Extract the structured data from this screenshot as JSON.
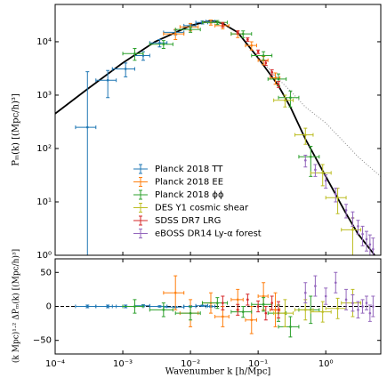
{
  "chart_data": [
    {
      "type": "errorbar",
      "log_x": true,
      "log_y": true,
      "ylabel": "Pₘ(k)  [(Mpc/h)³]",
      "xlim": [
        0.0001,
        6.5
      ],
      "ylim": [
        1,
        50000
      ],
      "xticks": [
        {
          "value": 0.0001,
          "label": "10⁻⁴"
        },
        {
          "value": 0.001,
          "label": "10⁻³"
        },
        {
          "value": 0.01,
          "label": "10⁻²"
        },
        {
          "value": 0.1,
          "label": "10⁻¹"
        },
        {
          "value": 1,
          "label": "10⁰"
        }
      ],
      "yticks": [
        {
          "value": 1,
          "label": "10⁰"
        },
        {
          "value": 10,
          "label": "10¹"
        },
        {
          "value": 100,
          "label": "10²"
        },
        {
          "value": 1000,
          "label": "10³"
        },
        {
          "value": 10000,
          "label": "10⁴"
        }
      ],
      "legend": "lower-center",
      "lines": [
        {
          "color": "#000000",
          "style": "solid",
          "x": [
            0.0001,
            0.0003,
            0.001,
            0.003,
            0.01,
            0.02,
            0.03,
            0.05,
            0.1,
            0.2,
            0.3,
            0.5,
            1,
            2,
            3,
            5,
            6.5
          ],
          "values": [
            450,
            1300,
            4000,
            10000,
            20000,
            25000,
            22000,
            15000,
            5000,
            1500,
            600,
            150,
            30,
            6,
            2.5,
            1.1,
            0.7
          ]
        },
        {
          "color": "#888888",
          "style": "dotted",
          "x": [
            0.1,
            0.2,
            0.3,
            0.5,
            1,
            2,
            3,
            5,
            6.5
          ],
          "values": [
            5200,
            2000,
            1200,
            600,
            300,
            120,
            70,
            40,
            30
          ]
        }
      ],
      "series": [
        {
          "name": "Planck 2018 TT",
          "color": "#1f77b4",
          "x": [
            0.0003,
            0.0006,
            0.0011,
            0.002,
            0.0035,
            0.006,
            0.01,
            0.015,
            0.02
          ],
          "values": [
            250,
            1900,
            3100,
            5500,
            9500,
            15000,
            20000,
            23000,
            24000
          ],
          "yerr": [
            2500,
            1000,
            900,
            1000,
            1500,
            1500,
            1500,
            1500,
            1500
          ],
          "xerr": [
            0.0001,
            0.0002,
            0.0004,
            0.0005,
            0.001,
            0.002,
            0.002,
            0.003,
            0.003
          ]
        },
        {
          "name": "Planck 2018 EE",
          "color": "#ff7f0e",
          "x": [
            0.006,
            0.01,
            0.02,
            0.03,
            0.05,
            0.08,
            0.12,
            0.18
          ],
          "values": [
            14000,
            19000,
            23000,
            20000,
            14000,
            8500,
            4500,
            2100
          ],
          "yerr": [
            3000,
            3000,
            2500,
            2500,
            2000,
            1500,
            800,
            500
          ],
          "xerr": [
            0.002,
            0.003,
            0.005,
            0.007,
            0.01,
            0.015,
            0.02,
            0.03
          ]
        },
        {
          "name": "Planck 2018 ϕϕ",
          "color": "#2ca02c",
          "x": [
            0.0015,
            0.004,
            0.01,
            0.025,
            0.06,
            0.12,
            0.2,
            0.3,
            0.6
          ],
          "values": [
            6000,
            9000,
            17000,
            23000,
            14000,
            5500,
            2000,
            900,
            70
          ],
          "yerr": [
            1500,
            1500,
            2000,
            2000,
            2000,
            1000,
            500,
            300,
            40
          ],
          "xerr": [
            0.0005,
            0.0015,
            0.004,
            0.01,
            0.02,
            0.04,
            0.06,
            0.1,
            0.2
          ]
        },
        {
          "name": "DES Y1 cosmic shear",
          "color": "#bcbd22",
          "x": [
            0.25,
            0.5,
            0.9,
            1.5,
            2.5
          ],
          "values": [
            800,
            180,
            35,
            12,
            3
          ],
          "yerr": [
            200,
            60,
            15,
            6,
            2
          ],
          "xerr": [
            0.08,
            0.15,
            0.3,
            0.5,
            0.8
          ]
        },
        {
          "name": "SDSS DR7 LRG",
          "color": "#d62728",
          "x": [
            0.03,
            0.05,
            0.07,
            0.1,
            0.13,
            0.16,
            0.2
          ],
          "values": [
            21000,
            15000,
            11000,
            6500,
            4000,
            2700,
            1600
          ],
          "yerr": [
            2000,
            1000,
            800,
            500,
            400,
            300,
            200
          ]
        },
        {
          "name": "eBOSS DR14 Ly-α forest",
          "color": "#9467bd",
          "x": [
            0.5,
            0.7,
            1.0,
            1.4,
            2.0,
            2.5,
            3.0,
            3.5,
            4.0,
            4.5,
            5.0
          ],
          "values": [
            60,
            40,
            25,
            14,
            7,
            5,
            3.5,
            2.5,
            2,
            1.6,
            1.3
          ],
          "yerr": [
            15,
            10,
            7,
            4,
            2,
            1.5,
            1,
            1,
            0.8,
            0.8,
            0.8
          ]
        }
      ]
    },
    {
      "type": "errorbar",
      "log_x": true,
      "log_y": false,
      "xlabel": "Wavenumber k  [h/Mpc]",
      "ylabel": "(k Mpc)¹·² ΔPₘ(k)  [(Mpc/h)³]",
      "xlim": [
        0.0001,
        6.5
      ],
      "ylim": [
        -70,
        70
      ],
      "xticks": [
        {
          "value": 0.0001,
          "label": "10⁻⁴"
        },
        {
          "value": 0.001,
          "label": "10⁻³"
        },
        {
          "value": 0.01,
          "label": "10⁻²"
        },
        {
          "value": 0.1,
          "label": "10⁻¹"
        },
        {
          "value": 1,
          "label": "10⁰"
        }
      ],
      "yticks": [
        {
          "value": -50,
          "label": "−50"
        },
        0,
        50
      ],
      "series": [
        {
          "color": "#1f77b4",
          "x": [
            0.0003,
            0.0006,
            0.0011,
            0.002,
            0.0035,
            0.006,
            0.01,
            0.015,
            0.02
          ],
          "values": [
            0,
            0,
            0,
            1,
            0,
            -1,
            0,
            1,
            0
          ],
          "yerr": [
            2,
            2,
            2,
            1.5,
            1,
            1,
            1,
            1,
            1
          ],
          "xerr": [
            0.0001,
            0.0002,
            0.0004,
            0.0005,
            0.001,
            0.002,
            0.002,
            0.003,
            0.003
          ]
        },
        {
          "color": "#ff7f0e",
          "x": [
            0.006,
            0.01,
            0.02,
            0.03,
            0.05,
            0.08,
            0.12,
            0.18
          ],
          "values": [
            20,
            -10,
            5,
            -15,
            10,
            -20,
            15,
            -5
          ],
          "yerr": [
            25,
            20,
            15,
            15,
            15,
            20,
            20,
            25
          ],
          "xerr": [
            0.002,
            0.003,
            0.005,
            0.007,
            0.01,
            0.015,
            0.02,
            0.03
          ]
        },
        {
          "color": "#2ca02c",
          "x": [
            0.0015,
            0.004,
            0.01,
            0.025,
            0.06,
            0.12,
            0.2,
            0.3,
            0.6
          ],
          "values": [
            0,
            -5,
            -10,
            5,
            -8,
            3,
            -10,
            -30,
            -5
          ],
          "yerr": [
            10,
            10,
            10,
            8,
            8,
            10,
            12,
            15,
            20
          ],
          "xerr": [
            0.0005,
            0.0015,
            0.004,
            0.01,
            0.02,
            0.04,
            0.06,
            0.1,
            0.2
          ]
        },
        {
          "color": "#bcbd22",
          "x": [
            0.25,
            0.5,
            0.9,
            1.5,
            2.5
          ],
          "values": [
            -10,
            -5,
            -8,
            -3,
            5
          ],
          "yerr": [
            20,
            15,
            15,
            15,
            20
          ],
          "xerr": [
            0.08,
            0.15,
            0.3,
            0.5,
            0.8
          ]
        },
        {
          "color": "#d62728",
          "x": [
            0.03,
            0.05,
            0.07,
            0.1,
            0.13,
            0.16,
            0.2
          ],
          "values": [
            5,
            -5,
            10,
            0,
            -10,
            5,
            -5
          ],
          "yerr": [
            10,
            8,
            8,
            8,
            10,
            10,
            12
          ]
        },
        {
          "color": "#9467bd",
          "x": [
            0.5,
            0.7,
            1.0,
            1.4,
            2.0,
            2.5,
            3.0,
            3.5,
            4.0,
            4.5,
            5.0
          ],
          "values": [
            20,
            30,
            15,
            35,
            10,
            5,
            -5,
            0,
            5,
            -10,
            0
          ],
          "yerr": [
            15,
            15,
            12,
            15,
            15,
            12,
            12,
            10,
            10,
            12,
            15
          ]
        }
      ]
    }
  ]
}
